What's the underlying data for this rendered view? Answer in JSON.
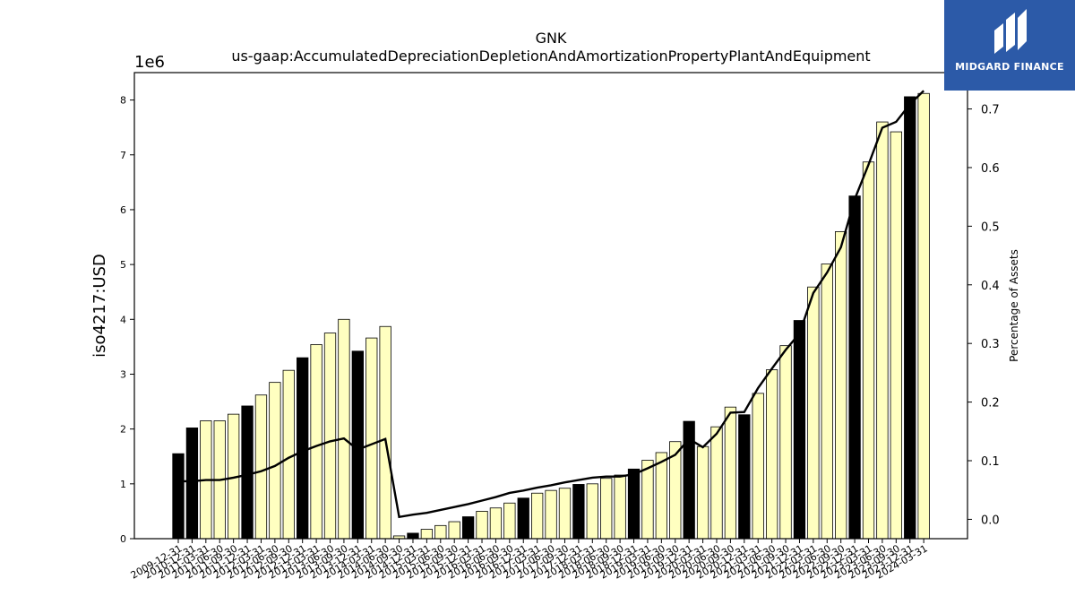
{
  "logo": {
    "text": "MIDGARD FINANCE"
  },
  "chart_data": {
    "type": "bar",
    "title": "GNK",
    "subtitle": "us-gaap:AccumulatedDepreciationDepletionAndAmortizationPropertyPlantAndEquipment",
    "ylabel": "iso4217:USD",
    "ylabel_right": "Percentage of Assets",
    "y_offset_label": "1e6",
    "ylim": [
      0,
      8.5
    ],
    "yticks": [
      0,
      1,
      2,
      3,
      4,
      5,
      6,
      7,
      8
    ],
    "y2lim": [
      -0.033,
      0.762
    ],
    "y2ticks": [
      "0.0",
      "0.1",
      "0.2",
      "0.3",
      "0.4",
      "0.5",
      "0.6",
      "0.7"
    ],
    "y2tick_values": [
      0,
      0.1,
      0.2,
      0.3,
      0.4,
      0.5,
      0.6,
      0.7
    ],
    "colors": {
      "annual": "#000000",
      "quarterly": "#ffffc0",
      "line": "#000000"
    },
    "categories": [
      "2009-12-31",
      "2010-12-31",
      "2011-03-31",
      "2011-06-30",
      "2011-09-30",
      "2011-12-31",
      "2012-03-31",
      "2012-06-30",
      "2012-09-30",
      "2012-12-31",
      "2013-03-31",
      "2013-06-30",
      "2013-09-30",
      "2013-12-31",
      "2014-03-31",
      "2014-06-30",
      "2014-09-30",
      "2014-12-31",
      "2015-03-31",
      "2015-06-30",
      "2015-09-30",
      "2015-12-31",
      "2016-03-31",
      "2016-06-30",
      "2016-09-30",
      "2016-12-31",
      "2017-03-31",
      "2017-06-30",
      "2017-09-30",
      "2017-12-31",
      "2018-03-31",
      "2018-06-30",
      "2018-09-30",
      "2018-12-31",
      "2019-03-31",
      "2019-06-30",
      "2019-09-30",
      "2019-12-31",
      "2020-03-31",
      "2020-06-30",
      "2020-09-30",
      "2020-12-31",
      "2021-03-31",
      "2021-06-30",
      "2021-09-30",
      "2021-12-31",
      "2022-03-31",
      "2022-06-30",
      "2022-09-30",
      "2022-12-31",
      "2023-03-31",
      "2023-06-30",
      "2023-09-30",
      "2023-12-31",
      "2024-03-31"
    ],
    "series": [
      {
        "values": [
          1.55,
          2.02,
          2.15,
          2.15,
          2.27,
          2.42,
          2.62,
          2.85,
          3.07,
          3.3,
          3.54,
          3.75,
          4.0,
          3.42,
          3.66,
          3.87,
          0.05,
          0.1,
          0.17,
          0.24,
          0.31,
          0.4,
          0.5,
          0.56,
          0.65,
          0.74,
          0.83,
          0.88,
          0.92,
          0.99,
          1.0,
          1.1,
          1.16,
          1.27,
          1.43,
          1.57,
          1.77,
          2.14,
          1.68,
          2.04,
          2.4,
          2.26,
          2.65,
          3.08,
          3.52,
          3.98,
          4.59,
          5.01,
          5.6,
          6.25,
          6.87,
          7.6,
          7.42,
          8.06,
          8.12
        ],
        "kind": [
          "A",
          "A",
          "Q",
          "Q",
          "Q",
          "A",
          "Q",
          "Q",
          "Q",
          "A",
          "Q",
          "Q",
          "Q",
          "A",
          "Q",
          "Q",
          "Q",
          "A",
          "Q",
          "Q",
          "Q",
          "A",
          "Q",
          "Q",
          "Q",
          "A",
          "Q",
          "Q",
          "Q",
          "A",
          "Q",
          "Q",
          "Q",
          "A",
          "Q",
          "Q",
          "Q",
          "A",
          "Q",
          "Q",
          "Q",
          "A",
          "Q",
          "Q",
          "Q",
          "A",
          "Q",
          "Q",
          "Q",
          "A",
          "Q",
          "Q",
          "Q",
          "A",
          "Q"
        ]
      },
      {
        "values": [
          0.065,
          0.065,
          0.067,
          0.067,
          0.071,
          0.076,
          0.082,
          0.091,
          0.105,
          0.116,
          0.125,
          0.133,
          0.138,
          0.119,
          0.128,
          0.137,
          0.004,
          0.008,
          0.011,
          0.016,
          0.021,
          0.026,
          0.032,
          0.038,
          0.045,
          0.049,
          0.054,
          0.058,
          0.063,
          0.067,
          0.071,
          0.073,
          0.073,
          0.077,
          0.087,
          0.098,
          0.11,
          0.137,
          0.123,
          0.146,
          0.182,
          0.183,
          0.224,
          0.257,
          0.289,
          0.317,
          0.386,
          0.421,
          0.464,
          0.546,
          0.605,
          0.668,
          0.678,
          0.708,
          0.731
        ]
      }
    ]
  }
}
